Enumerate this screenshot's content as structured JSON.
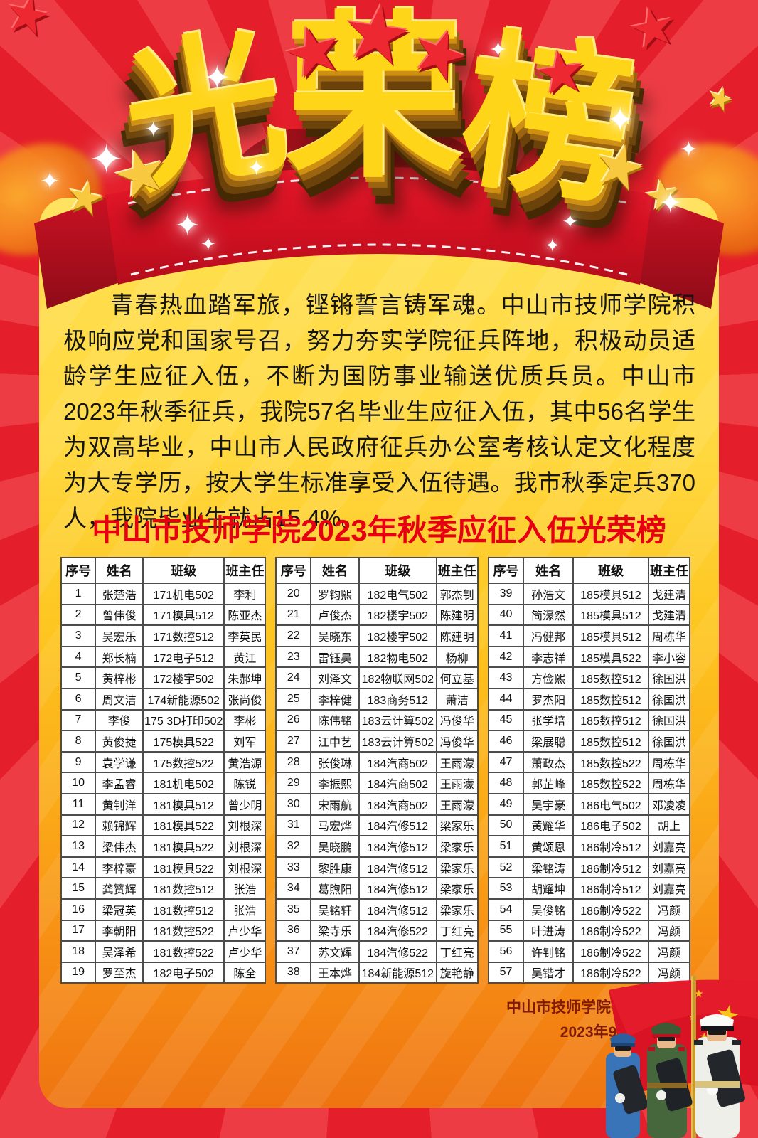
{
  "title": {
    "c1": "光",
    "c2": "荣",
    "c3": "榜"
  },
  "intro": "青春热血踏军旅，铿锵誓言铸军魂。中山市技师学院积极响应党和国家号召，努力夯实学院征兵阵地，积极动员适龄学生应征入伍，不断为国防事业输送优质兵员。中山市2023年秋季征兵，我院57名毕业生应征入伍，其中56名学生为双高毕业，中山市人民政府征兵办公室考核认定文化程度为大专学历，按大学生标准享受入伍待遇。我市秋季定兵370人，我院毕业生就占15.4%。",
  "section_title": "中山市技师学院2023年秋季应征入伍光荣榜",
  "table_headers": [
    "序号",
    "姓名",
    "班级",
    "班主任"
  ],
  "tables": [
    {
      "rows": [
        [
          "1",
          "张楚浩",
          "171机电502",
          "李利"
        ],
        [
          "2",
          "曾伟俊",
          "171模具512",
          "陈亚杰"
        ],
        [
          "3",
          "吴宏乐",
          "171数控512",
          "李英民"
        ],
        [
          "4",
          "郑长楠",
          "172电子512",
          "黄江"
        ],
        [
          "5",
          "黄梓彬",
          "172楼宇502",
          "朱郝坤"
        ],
        [
          "6",
          "周文洁",
          "174新能源502",
          "张尚俊"
        ],
        [
          "7",
          "李俊",
          "175 3D打印502",
          "李彬"
        ],
        [
          "8",
          "黄俊捷",
          "175模具522",
          "刘军"
        ],
        [
          "9",
          "袁学谦",
          "175数控522",
          "黄浩源"
        ],
        [
          "10",
          "李孟睿",
          "181机电502",
          "陈锐"
        ],
        [
          "11",
          "黄钊洋",
          "181模具512",
          "曾少明"
        ],
        [
          "12",
          "赖锦辉",
          "181模具522",
          "刘根深"
        ],
        [
          "13",
          "梁伟杰",
          "181模具522",
          "刘根深"
        ],
        [
          "14",
          "李梓豪",
          "181模具522",
          "刘根深"
        ],
        [
          "15",
          "龚赞辉",
          "181数控512",
          "张浩"
        ],
        [
          "16",
          "梁冠英",
          "181数控512",
          "张浩"
        ],
        [
          "17",
          "李朝阳",
          "181数控522",
          "卢少华"
        ],
        [
          "18",
          "吴泽希",
          "181数控522",
          "卢少华"
        ],
        [
          "19",
          "罗至杰",
          "182电子502",
          "陈全"
        ]
      ]
    },
    {
      "rows": [
        [
          "20",
          "罗钧熙",
          "182电气502",
          "郭杰钊"
        ],
        [
          "21",
          "卢俊杰",
          "182楼宇502",
          "陈建明"
        ],
        [
          "22",
          "吴晓东",
          "182楼宇502",
          "陈建明"
        ],
        [
          "23",
          "雷钰昊",
          "182物电502",
          "杨柳"
        ],
        [
          "24",
          "刘泽文",
          "182物联网502",
          "何立基"
        ],
        [
          "25",
          "李梓健",
          "183商务512",
          "萧洁"
        ],
        [
          "26",
          "陈伟铭",
          "183云计算502",
          "冯俊华"
        ],
        [
          "27",
          "江中艺",
          "183云计算502",
          "冯俊华"
        ],
        [
          "28",
          "张俊琳",
          "184汽商502",
          "王雨濛"
        ],
        [
          "29",
          "李振熙",
          "184汽商502",
          "王雨濛"
        ],
        [
          "30",
          "宋雨航",
          "184汽商502",
          "王雨濛"
        ],
        [
          "31",
          "马宏烨",
          "184汽修512",
          "梁家乐"
        ],
        [
          "32",
          "吴晓鹏",
          "184汽修512",
          "梁家乐"
        ],
        [
          "33",
          "黎胜康",
          "184汽修512",
          "梁家乐"
        ],
        [
          "34",
          "葛煦阳",
          "184汽修512",
          "梁家乐"
        ],
        [
          "35",
          "吴铭轩",
          "184汽修512",
          "梁家乐"
        ],
        [
          "36",
          "梁寺乐",
          "184汽修522",
          "丁红亮"
        ],
        [
          "37",
          "苏文辉",
          "184汽修522",
          "丁红亮"
        ],
        [
          "38",
          "王本烨",
          "184新能源512",
          "旋艳静"
        ]
      ]
    },
    {
      "rows": [
        [
          "39",
          "孙浩文",
          "185模具512",
          "戈建清"
        ],
        [
          "40",
          "简濠然",
          "185模具512",
          "戈建清"
        ],
        [
          "41",
          "冯健邦",
          "185模具512",
          "周栋华"
        ],
        [
          "42",
          "李志祥",
          "185模具522",
          "李小容"
        ],
        [
          "43",
          "方俭熙",
          "185数控512",
          "徐国洪"
        ],
        [
          "44",
          "罗杰阳",
          "185数控512",
          "徐国洪"
        ],
        [
          "45",
          "张学培",
          "185数控512",
          "徐国洪"
        ],
        [
          "46",
          "梁展聪",
          "185数控512",
          "徐国洪"
        ],
        [
          "47",
          "萧政杰",
          "185数控522",
          "周栋华"
        ],
        [
          "48",
          "郭芷峰",
          "185数控522",
          "周栋华"
        ],
        [
          "49",
          "吴宇豪",
          "186电气502",
          "邓凌凌"
        ],
        [
          "50",
          "黄耀华",
          "186电子502",
          "胡上"
        ],
        [
          "51",
          "黄颂恩",
          "186制冷512",
          "刘嘉亮"
        ],
        [
          "52",
          "梁铭涛",
          "186制冷512",
          "刘嘉亮"
        ],
        [
          "53",
          "胡耀坤",
          "186制冷512",
          "刘嘉亮"
        ],
        [
          "54",
          "吴俊铭",
          "186制冷522",
          "冯颜"
        ],
        [
          "55",
          "叶进涛",
          "186制冷522",
          "冯颜"
        ],
        [
          "56",
          "许钊铭",
          "186制冷522",
          "冯颜"
        ],
        [
          "57",
          "吴锴才",
          "186制冷522",
          "冯颜"
        ]
      ]
    }
  ],
  "footer": {
    "line1": "中山市技师学院征兵工作站",
    "line2": "2023年9月"
  },
  "icons": {
    "star": "★",
    "sparkle": "✦"
  },
  "colors": {
    "background_red": "#e6202b",
    "panel_gold_top": "#ffe052",
    "panel_orange_bottom": "#ef7411",
    "ribbon_red": "#d61223",
    "title_gold": "#ffd519",
    "section_title_red": "#e60012",
    "table_border": "#4d4d4d",
    "footer_maroon": "#7f1a06",
    "star_red": "#ee2830",
    "star_gold": "#f8c83f"
  }
}
